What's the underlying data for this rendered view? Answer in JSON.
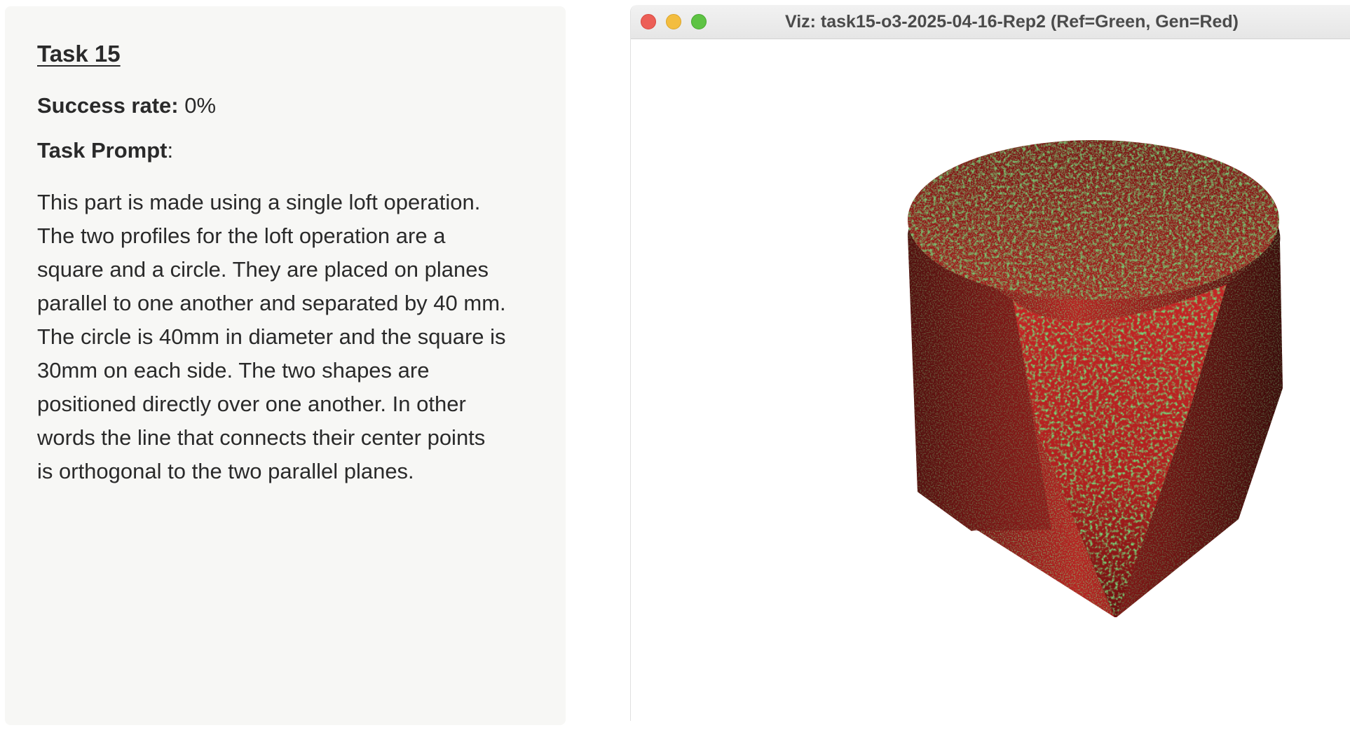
{
  "notes": {
    "task_title": "Task 15",
    "success_label": "Success rate:",
    "success_value": " 0%",
    "prompt_label": "Task Prompt",
    "prompt_colon": ":",
    "prompt_lines": [
      "This part is made using a single loft operation.",
      "The two profiles for the loft operation are a",
      "square and a circle. They are placed on planes",
      "parallel to one another and separated by 40 mm.",
      "The circle is 40mm in diameter and the square is",
      "30mm on each side. The two shapes are",
      "positioned directly over one another. In other",
      "words the line that connects their center points",
      "is orthogonal to the two parallel planes."
    ]
  },
  "viewer": {
    "window_title": "Viz: task15-o3-2025-04-16-Rep2 (Ref=Green, Gen=Red)",
    "colors": {
      "reference": "#2e9a2e",
      "generated": "#c42424",
      "dark_red": "#5a0f0f"
    }
  }
}
